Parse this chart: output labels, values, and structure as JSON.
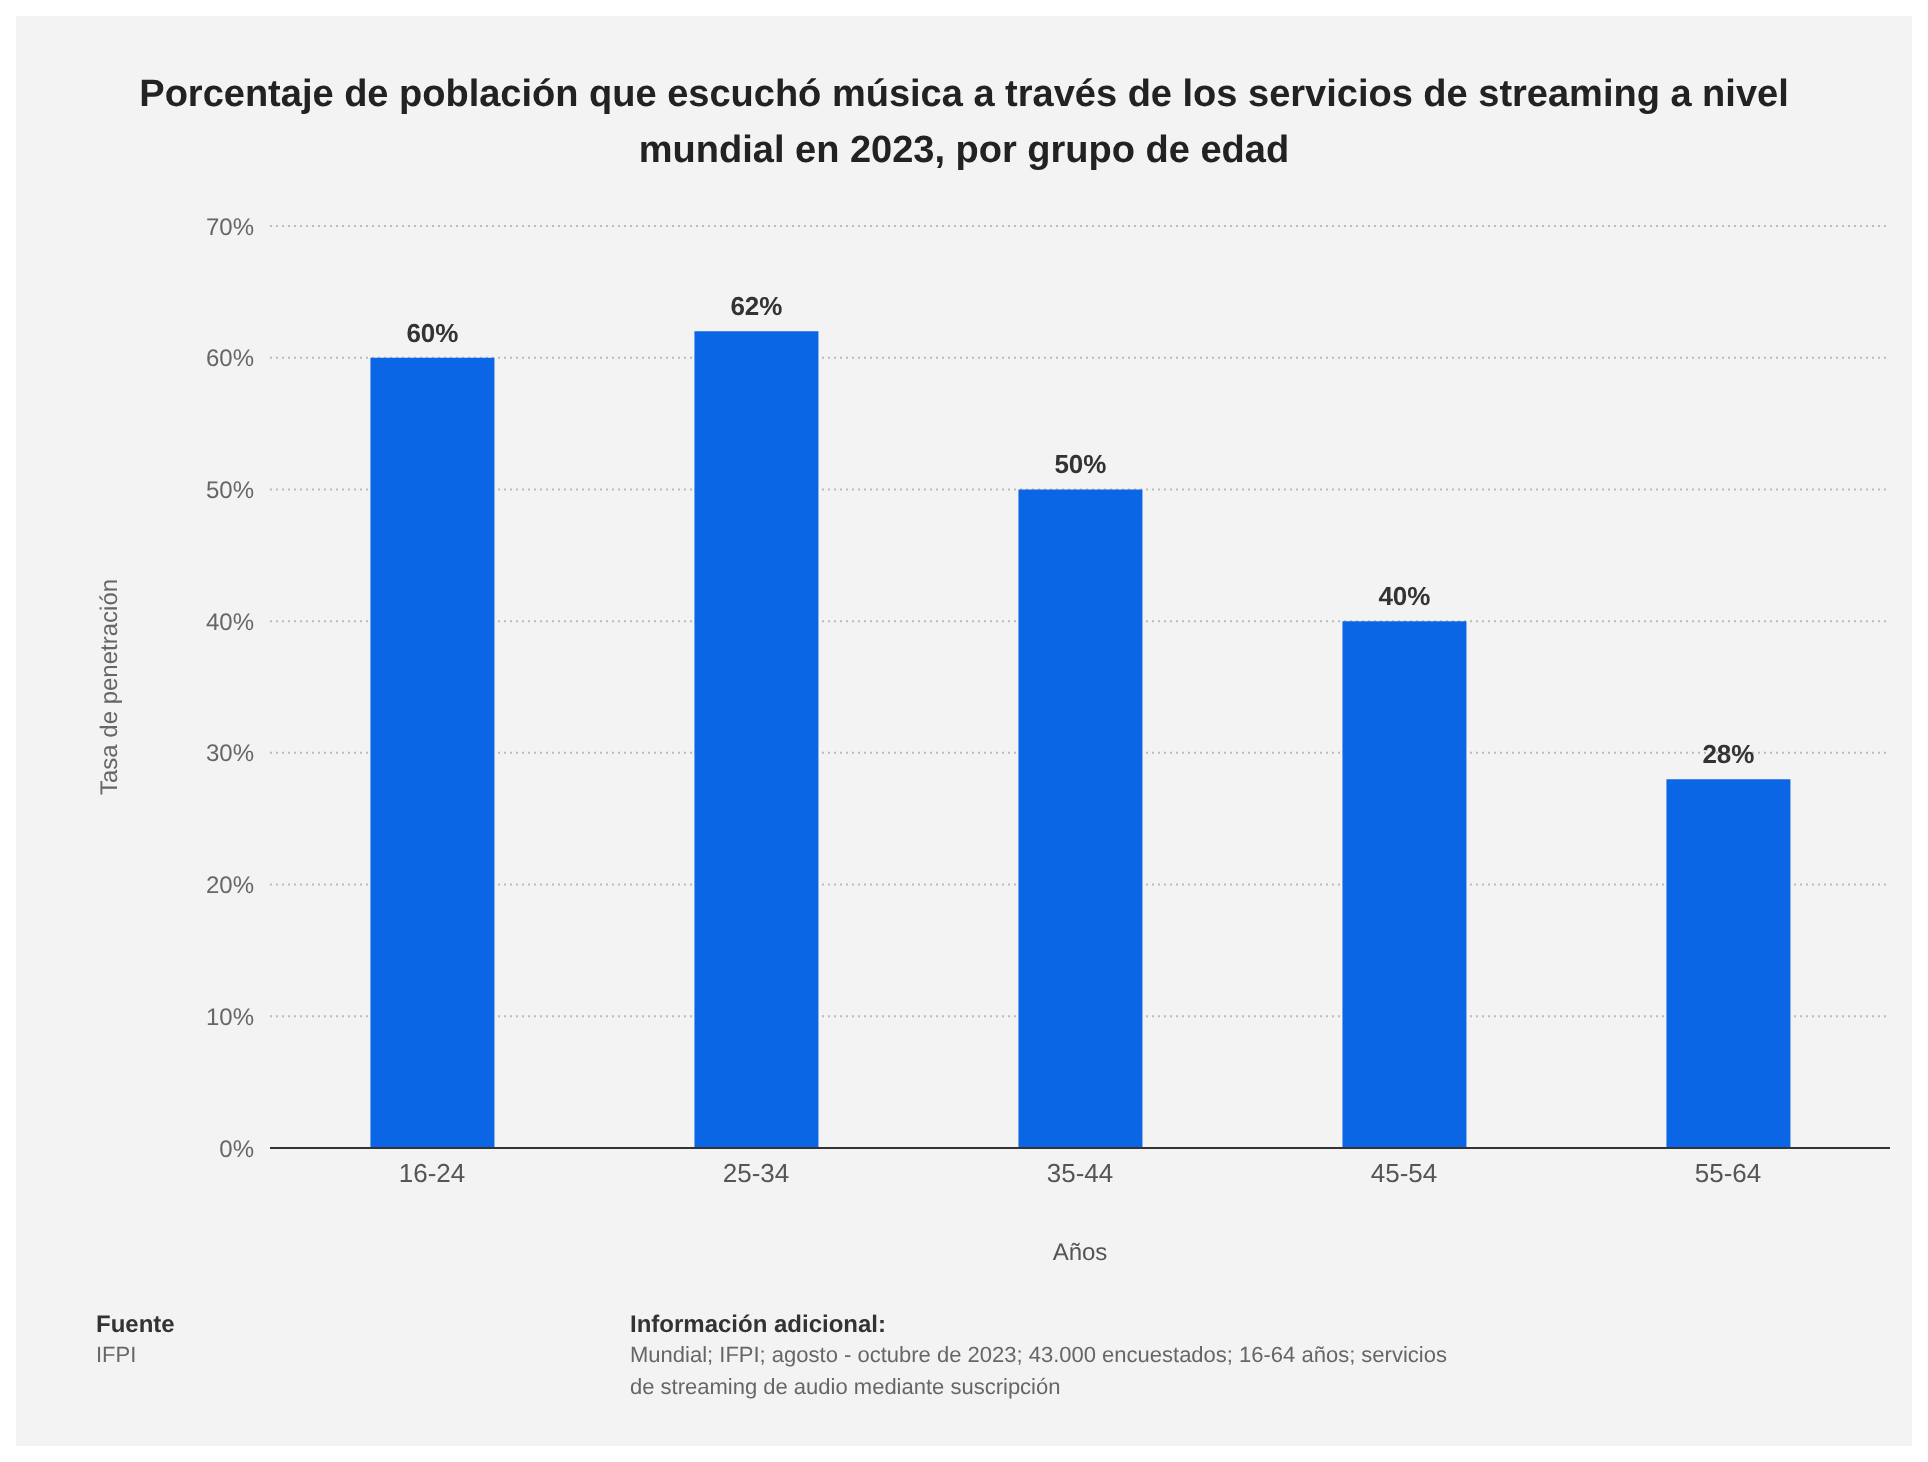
{
  "chart_data": {
    "type": "bar",
    "title": "Porcentaje de población que escuchó música a través de los servicios de streaming a nivel mundial en 2023, por grupo de edad",
    "xlabel": "Años",
    "ylabel": "Tasa de penetración",
    "categories": [
      "16-24",
      "25-34",
      "35-44",
      "45-54",
      "55-64"
    ],
    "series": [
      {
        "color": "#0a66e4",
        "values": [
          60,
          62,
          50,
          40,
          28
        ],
        "value_labels": [
          "60%",
          "62%",
          "50%",
          "40%",
          "28%"
        ]
      }
    ],
    "ylim": [
      0,
      70
    ],
    "yticks": [
      {
        "value": 0,
        "label": "0%"
      },
      {
        "value": 10,
        "label": "10%"
      },
      {
        "value": 20,
        "label": "20%"
      },
      {
        "value": 30,
        "label": "30%"
      },
      {
        "value": 40,
        "label": "40%"
      },
      {
        "value": 50,
        "label": "50%"
      },
      {
        "value": 60,
        "label": "60%"
      },
      {
        "value": 70,
        "label": "70%"
      }
    ],
    "grid": "y",
    "annotations": [
      "Fuente",
      "IFPI",
      "Información adicional:",
      "Mundial; IFPI; agosto - octubre de 2023; 43.000 encuestados; 16-64 años; servicios de streaming de audio mediante suscripción"
    ]
  }
}
